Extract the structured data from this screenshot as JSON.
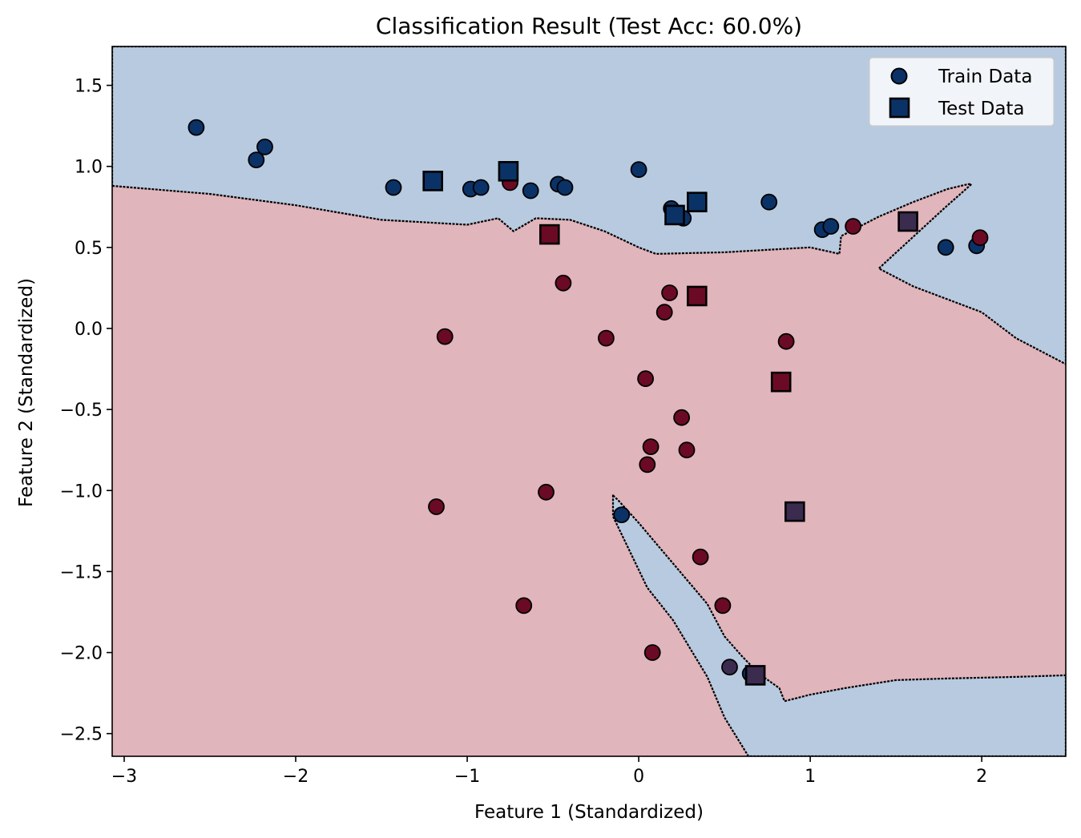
{
  "chart_data": {
    "type": "scatter",
    "title": "Classification Result (Test Acc: 60.0%)",
    "xlabel": "Feature 1 (Standardized)",
    "ylabel": "Feature 2 (Standardized)",
    "xlim": [
      -3.07,
      2.49
    ],
    "ylim": [
      -2.64,
      1.74
    ],
    "xticks": [
      -3,
      -2,
      -1,
      0,
      1,
      2
    ],
    "xtick_labels": [
      "−3",
      "−2",
      "−1",
      "0",
      "1",
      "2"
    ],
    "yticks": [
      1.5,
      1.0,
      0.5,
      0.0,
      -0.5,
      -1.0,
      -1.5,
      -2.0,
      -2.5
    ],
    "ytick_labels": [
      "1.5",
      "1.0",
      "0.5",
      "0.0",
      "−0.5",
      "−1.0",
      "−1.5",
      "−2.0",
      "−2.5"
    ],
    "grid": false,
    "legend": {
      "placement": "top-right",
      "entries": [
        {
          "label": "Train Data",
          "marker": "circle"
        },
        {
          "label": "Test Data",
          "marker": "square"
        }
      ]
    },
    "colors": {
      "class_a": "#0a3266",
      "class_b": "#6b0a25",
      "mixed": "#3a2b4f",
      "region_a": "#b8cadf",
      "region_b": "#e1b5bc",
      "boundary": "#000000"
    },
    "regions": {
      "class_a_polygons": [
        [
          [
            -3.07,
            0.88
          ],
          [
            -2.5,
            0.83
          ],
          [
            -2.0,
            0.76
          ],
          [
            -1.5,
            0.67
          ],
          [
            -1.0,
            0.64
          ],
          [
            -0.82,
            0.68
          ],
          [
            -0.73,
            0.6
          ],
          [
            -0.6,
            0.68
          ],
          [
            -0.4,
            0.67
          ],
          [
            -0.2,
            0.6
          ],
          [
            0.0,
            0.5
          ],
          [
            0.1,
            0.46
          ],
          [
            0.5,
            0.47
          ],
          [
            1.0,
            0.5
          ],
          [
            1.17,
            0.46
          ],
          [
            1.18,
            0.57
          ],
          [
            1.4,
            0.69
          ],
          [
            1.6,
            0.78
          ],
          [
            1.8,
            0.86
          ],
          [
            1.92,
            0.89
          ],
          [
            1.94,
            0.89
          ],
          [
            1.78,
            0.74
          ],
          [
            1.4,
            0.37
          ],
          [
            1.6,
            0.26
          ],
          [
            2.0,
            0.1
          ],
          [
            2.2,
            -0.06
          ],
          [
            2.49,
            -0.22
          ],
          [
            2.49,
            1.74
          ],
          [
            -3.07,
            1.74
          ]
        ],
        [
          [
            -0.15,
            -1.03
          ],
          [
            -0.12,
            -1.06
          ],
          [
            0.0,
            -1.2
          ],
          [
            0.2,
            -1.45
          ],
          [
            0.4,
            -1.7
          ],
          [
            0.5,
            -1.9
          ],
          [
            0.6,
            -2.02
          ],
          [
            0.7,
            -2.13
          ],
          [
            0.82,
            -2.22
          ],
          [
            0.85,
            -2.3
          ],
          [
            1.0,
            -2.26
          ],
          [
            1.2,
            -2.22
          ],
          [
            1.5,
            -2.17
          ],
          [
            1.8,
            -2.16
          ],
          [
            2.2,
            -2.15
          ],
          [
            2.49,
            -2.14
          ],
          [
            2.49,
            -2.64
          ],
          [
            0.64,
            -2.64
          ],
          [
            0.5,
            -2.4
          ],
          [
            0.4,
            -2.15
          ],
          [
            0.2,
            -1.8
          ],
          [
            0.05,
            -1.6
          ],
          [
            -0.05,
            -1.38
          ],
          [
            -0.15,
            -1.16
          ]
        ]
      ]
    },
    "train": [
      {
        "x": -2.58,
        "y": 1.24,
        "cls": "a"
      },
      {
        "x": -2.23,
        "y": 1.04,
        "cls": "a"
      },
      {
        "x": -2.18,
        "y": 1.12,
        "cls": "a"
      },
      {
        "x": -1.43,
        "y": 0.87,
        "cls": "a"
      },
      {
        "x": -0.98,
        "y": 0.86,
        "cls": "a"
      },
      {
        "x": -0.92,
        "y": 0.87,
        "cls": "a"
      },
      {
        "x": -0.75,
        "y": 0.9,
        "cls": "b"
      },
      {
        "x": -0.63,
        "y": 0.85,
        "cls": "a"
      },
      {
        "x": -0.47,
        "y": 0.89,
        "cls": "a"
      },
      {
        "x": -0.43,
        "y": 0.87,
        "cls": "a"
      },
      {
        "x": 0.0,
        "y": 0.98,
        "cls": "a"
      },
      {
        "x": 0.19,
        "y": 0.74,
        "cls": "a"
      },
      {
        "x": 0.26,
        "y": 0.68,
        "cls": "a"
      },
      {
        "x": 0.76,
        "y": 0.78,
        "cls": "a"
      },
      {
        "x": 1.07,
        "y": 0.61,
        "cls": "a"
      },
      {
        "x": 1.12,
        "y": 0.63,
        "cls": "a"
      },
      {
        "x": 1.25,
        "y": 0.63,
        "cls": "b"
      },
      {
        "x": 1.79,
        "y": 0.5,
        "cls": "a"
      },
      {
        "x": 1.97,
        "y": 0.51,
        "cls": "a"
      },
      {
        "x": 1.99,
        "y": 0.56,
        "cls": "b"
      },
      {
        "x": -0.44,
        "y": 0.28,
        "cls": "b"
      },
      {
        "x": 0.18,
        "y": 0.22,
        "cls": "b"
      },
      {
        "x": 0.15,
        "y": 0.1,
        "cls": "b"
      },
      {
        "x": -1.13,
        "y": -0.05,
        "cls": "b"
      },
      {
        "x": -0.19,
        "y": -0.06,
        "cls": "b"
      },
      {
        "x": 0.86,
        "y": -0.08,
        "cls": "b"
      },
      {
        "x": 0.04,
        "y": -0.31,
        "cls": "b"
      },
      {
        "x": 0.25,
        "y": -0.55,
        "cls": "b"
      },
      {
        "x": 0.07,
        "y": -0.73,
        "cls": "b"
      },
      {
        "x": 0.28,
        "y": -0.75,
        "cls": "b"
      },
      {
        "x": 0.05,
        "y": -0.84,
        "cls": "b"
      },
      {
        "x": -1.18,
        "y": -1.1,
        "cls": "b"
      },
      {
        "x": -0.54,
        "y": -1.01,
        "cls": "b"
      },
      {
        "x": -0.1,
        "y": -1.15,
        "cls": "a"
      },
      {
        "x": 0.36,
        "y": -1.41,
        "cls": "b"
      },
      {
        "x": -0.67,
        "y": -1.71,
        "cls": "b"
      },
      {
        "x": 0.49,
        "y": -1.71,
        "cls": "b"
      },
      {
        "x": 0.08,
        "y": -2.0,
        "cls": "b"
      },
      {
        "x": 0.53,
        "y": -2.09,
        "cls": "mixed"
      },
      {
        "x": 0.65,
        "y": -2.13,
        "cls": "a"
      }
    ],
    "test": [
      {
        "x": -1.2,
        "y": 0.91,
        "cls": "a"
      },
      {
        "x": -0.76,
        "y": 0.97,
        "cls": "a"
      },
      {
        "x": -0.52,
        "y": 0.58,
        "cls": "b"
      },
      {
        "x": 0.21,
        "y": 0.7,
        "cls": "a"
      },
      {
        "x": 0.34,
        "y": 0.78,
        "cls": "a"
      },
      {
        "x": 0.34,
        "y": 0.2,
        "cls": "b"
      },
      {
        "x": 1.57,
        "y": 0.66,
        "cls": "mixed"
      },
      {
        "x": 0.83,
        "y": -0.33,
        "cls": "b"
      },
      {
        "x": 0.91,
        "y": -1.13,
        "cls": "mixed"
      },
      {
        "x": 0.68,
        "y": -2.14,
        "cls": "mixed"
      }
    ]
  }
}
